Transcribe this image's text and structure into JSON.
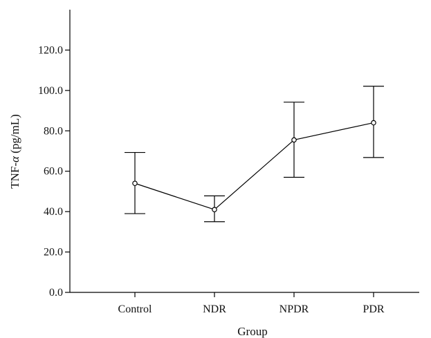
{
  "chart_data": {
    "type": "line",
    "title": "",
    "xlabel": "Group",
    "ylabel": "TNF-α (pg/mL)",
    "ylabel_parts": [
      "TNF-",
      "α",
      " (pg/mL)"
    ],
    "categories": [
      "Control",
      "NDR",
      "NPDR",
      "PDR"
    ],
    "series": [
      {
        "values": [
          54.0,
          41.0,
          75.5,
          84.0
        ],
        "error_lower": [
          39.0,
          35.0,
          57.0,
          66.8
        ],
        "error_upper": [
          69.3,
          47.8,
          94.2,
          102.1
        ]
      }
    ],
    "yticks": [
      "0.0",
      "20.0",
      "40.0",
      "60.0",
      "80.0",
      "100.0",
      "120.0"
    ],
    "ytick_values": [
      0,
      20,
      40,
      60,
      80,
      100,
      120
    ],
    "ylim": [
      0,
      140
    ],
    "grid": false,
    "legend": "none",
    "colors": {
      "line": "#000000",
      "marker_fill": "#ffffff"
    }
  }
}
